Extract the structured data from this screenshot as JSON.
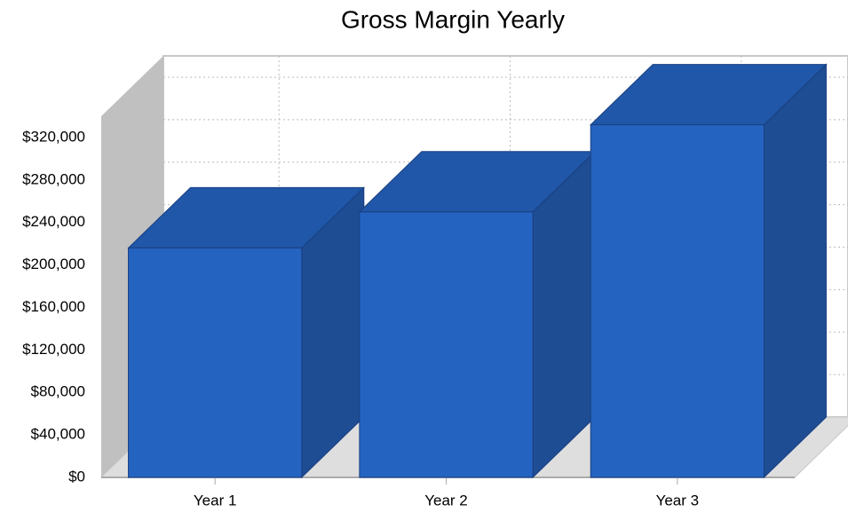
{
  "chart_data": {
    "type": "bar3d",
    "title": "Gross Margin Yearly",
    "categories": [
      "Year 1",
      "Year 2",
      "Year 3"
    ],
    "values": [
      216000,
      250000,
      332000
    ],
    "color": "#2563c0",
    "ylim": [
      0,
      340000
    ],
    "yticks": [
      {
        "value": 0,
        "label": "$0"
      },
      {
        "value": 40000,
        "label": "$40,000"
      },
      {
        "value": 80000,
        "label": "$80,000"
      },
      {
        "value": 120000,
        "label": "$120,000"
      },
      {
        "value": 160000,
        "label": "$160,000"
      },
      {
        "value": 200000,
        "label": "$200,000"
      },
      {
        "value": 240000,
        "label": "$240,000"
      },
      {
        "value": 280000,
        "label": "$280,000"
      },
      {
        "value": 320000,
        "label": "$320,000"
      }
    ],
    "grid": true
  }
}
